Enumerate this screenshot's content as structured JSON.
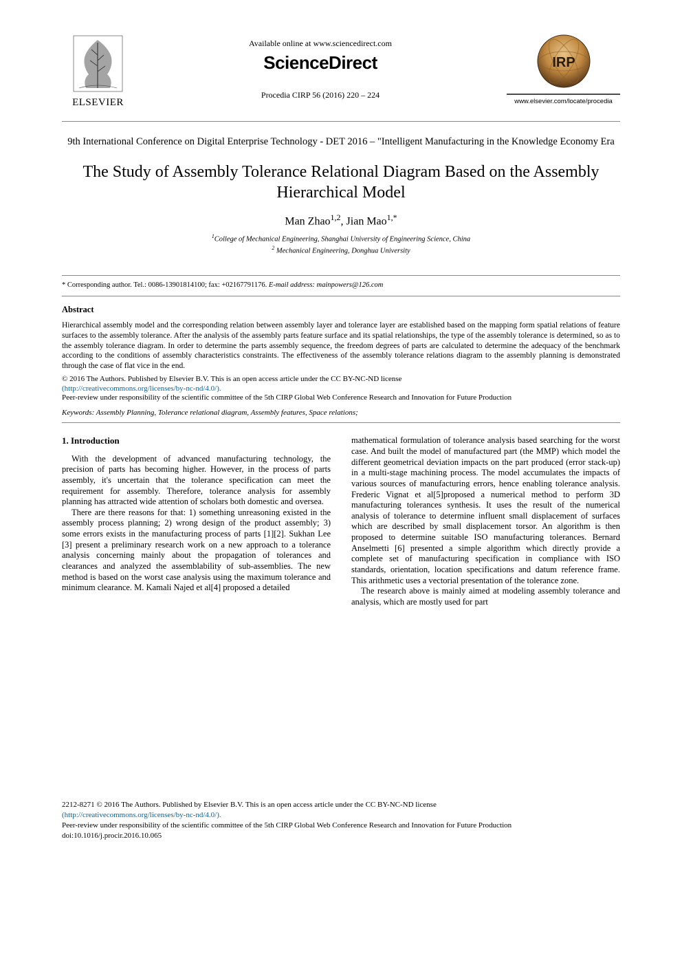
{
  "header": {
    "available_online": "Available online at www.sciencedirect.com",
    "sciencedirect": "ScienceDirect",
    "procedia": "Procedia CIRP 56 (2016) 220 – 224",
    "elsevier_label": "ELSEVIER",
    "cirp_label": "IRP",
    "cirp_url": "www.elsevier.com/locate/procedia",
    "elsevier_tree_fill": "#5a5a5a",
    "cirp_gradient_top": "#d4a056",
    "cirp_gradient_bottom": "#6b4520"
  },
  "conference": "9th International Conference on Digital Enterprise Technology - DET 2016 – \"Intelligent Manufacturing in the Knowledge Economy Era",
  "title": "The Study of Assembly Tolerance Relational Diagram Based on the Assembly Hierarchical Model",
  "authors_html": "Man Zhao<sup>1,2</sup>, Jian Mao<sup>1,*</sup>",
  "affiliations": {
    "a1": "<sup>1</sup>College of Mechanical Engineering, Shanghai University of Engineering Science, China",
    "a2": "<sup>2</sup> Mechanical Engineering, Donghua University"
  },
  "corresponding": {
    "prefix": "* Corresponding author. Tel.: 0086-13901814100; fax: +02167791176. ",
    "email_label": "E-mail address: mainpowers@126.com"
  },
  "abstract": {
    "heading": "Abstract",
    "body": "Hierarchical assembly model and the corresponding relation between assembly layer and tolerance layer are established based on the mapping form spatial relations of feature surfaces to the assembly tolerance. After the analysis of the assembly parts feature surface and its spatial relationships, the type of the assembly tolerance is determined, so as to the assembly tolerance diagram. In order to determine the parts assembly sequence, the freedom degrees of parts are calculated to determine the adequacy of the benchmark according to the conditions of assembly characteristics constraints. The effectiveness of the assembly tolerance relations diagram to the assembly planning is demonstrated through the case of flat vice in the end.",
    "copyright_line1": "© 2016 The Authors. Published by Elsevier B.V. This is an open access article under the CC BY-NC-ND license",
    "cc_url": "(http://creativecommons.org/licenses/by-nc-nd/4.0/).",
    "peer_review": "Peer-review under responsibility of the scientific committee of the 5th CIRP Global Web Conference Research and Innovation for Future Production"
  },
  "keywords": "Keywords: Assembly Planning, Tolerance relational diagram, Assembly features, Space relations;",
  "section1": {
    "heading": "1. Introduction",
    "left_p1": "With the development of advanced manufacturing technology, the precision of parts has becoming higher. However, in the process of parts assembly, it's uncertain that the tolerance specification can meet the requirement for assembly. Therefore, tolerance analysis for assembly planning has attracted wide attention of scholars both domestic and oversea.",
    "left_p2": "There are there reasons for that: 1) something unreasoning existed in the assembly process planning; 2) wrong design of the product assembly; 3) some errors exists in the manufacturing process of parts [1][2]. Sukhan Lee [3] present a preliminary research work on a new approach to a tolerance analysis concerning mainly about the propagation of tolerances and clearances and analyzed the assemblability of sub-assemblies. The new method is based on the worst case analysis using the maximum tolerance and minimum clearance. M. Kamali Najed et al[4] proposed a detailed",
    "right_p1": "mathematical formulation of tolerance analysis based searching for the worst case. And built the model of manufactured part (the MMP) which model the different geometrical deviation impacts on the part produced (error stack-up) in a multi-stage machining process. The model accumulates the impacts of various sources of manufacturing errors, hence enabling tolerance analysis. Frederic Vignat et al[5]proposed a numerical method to perform 3D manufacturing tolerances synthesis. It uses the result of the numerical analysis of tolerance to determine influent small displacement of surfaces which are described by small displacement torsor. An algorithm is then proposed to determine suitable ISO manufacturing tolerances. Bernard Anselmetti [6] presented a simple algorithm which directly provide a complete set of manufacturing specification in compliance with ISO standards, orientation, location specifications and datum reference frame. This arithmetic uses a vectorial presentation of the tolerance zone.",
    "right_p2": "The research above is mainly aimed at modeling assembly tolerance and analysis, which are mostly used for part"
  },
  "footer": {
    "line1": "2212-8271 © 2016 The Authors. Published by Elsevier B.V. This is an open access article under the CC BY-NC-ND license",
    "cc_url": "(http://creativecommons.org/licenses/by-nc-nd/4.0/).",
    "peer": "Peer-review under responsibility of the scientific committee of the 5th CIRP Global Web Conference Research and Innovation for Future Production",
    "doi": "doi:10.1016/j.procir.2016.10.065"
  },
  "colors": {
    "text": "#000000",
    "link": "#0066aa",
    "rule": "#888888"
  }
}
